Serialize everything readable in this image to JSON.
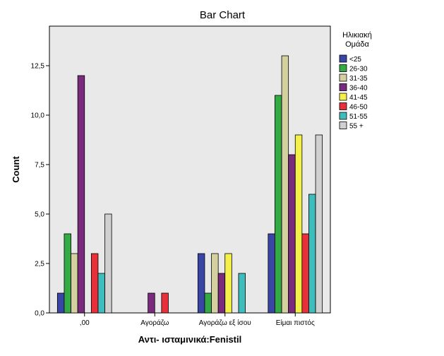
{
  "chart_data": {
    "type": "bar",
    "title": "Bar Chart",
    "xlabel": "Αντι- ισταμινικά:Fenistil",
    "ylabel": "Count",
    "categories": [
      ",00",
      "Αγοράζω",
      "Αγοράζω εξ ίσου",
      "Είμαι πιστός"
    ],
    "ylim": [
      0,
      14.5
    ],
    "yticks": [
      "0,0",
      "2,5",
      "5,0",
      "7,5",
      "10,0",
      "12,5"
    ],
    "ytick_values": [
      0,
      2.5,
      5,
      7.5,
      10,
      12.5
    ],
    "legend_title": [
      "Ηλικιακή",
      "Ομάδα"
    ],
    "legend_position": "right",
    "grid": false,
    "background": "#e9e9e9",
    "series": [
      {
        "name": "<25",
        "color": "#3a46a6",
        "values": [
          1,
          null,
          3,
          4
        ]
      },
      {
        "name": "26-30",
        "color": "#33aa44",
        "values": [
          4,
          null,
          1,
          11
        ]
      },
      {
        "name": "31-35",
        "color": "#d5d0a0",
        "values": [
          3,
          null,
          3,
          13
        ]
      },
      {
        "name": "36-40",
        "color": "#7a2b7e",
        "values": [
          12,
          1,
          2,
          8
        ]
      },
      {
        "name": "41-45",
        "color": "#f4f04a",
        "values": [
          null,
          null,
          3,
          9
        ]
      },
      {
        "name": "46-50",
        "color": "#e8303a",
        "values": [
          3,
          1,
          null,
          4
        ]
      },
      {
        "name": "51-55",
        "color": "#3fbcbc",
        "values": [
          2,
          null,
          2,
          6
        ]
      },
      {
        "name": "55 +",
        "color": "#d0d0d0",
        "values": [
          5,
          null,
          null,
          9
        ]
      }
    ]
  }
}
